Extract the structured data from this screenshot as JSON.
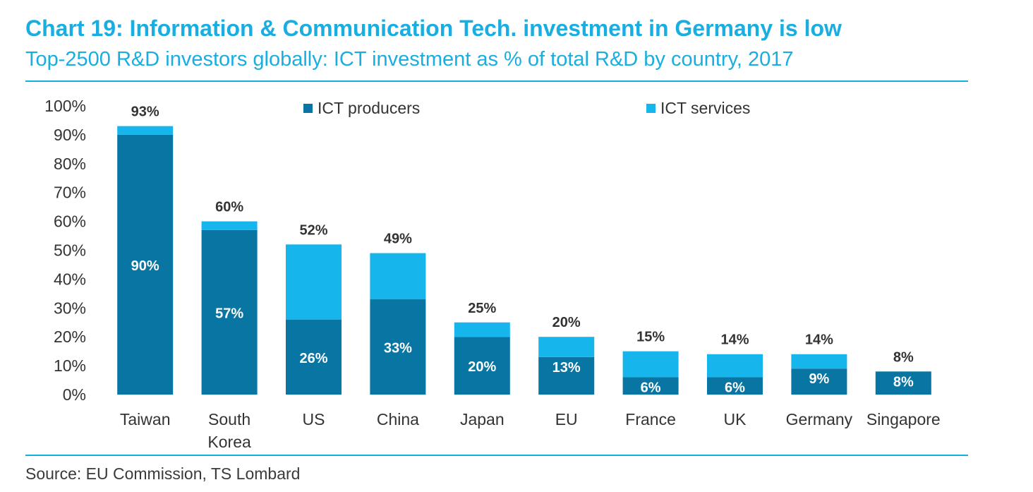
{
  "title": "Chart 19: Information & Communication Tech. investment in Germany is low",
  "subtitle": "Top-2500 R&D investors globally: ICT investment as % of total R&D by country, 2017",
  "source": "Source: EU Commission, TS Lombard",
  "colors": {
    "accent": "#1aaee0",
    "producers": "#0875a3",
    "services": "#16b5ec"
  },
  "legend": {
    "producers": "ICT producers",
    "services": "ICT services"
  },
  "chart_data": {
    "type": "bar",
    "stacked": true,
    "categories": [
      "Taiwan",
      "South Korea",
      "US",
      "China",
      "Japan",
      "EU",
      "France",
      "UK",
      "Germany",
      "Singapore"
    ],
    "category_lines": [
      [
        "Taiwan"
      ],
      [
        "South",
        "Korea"
      ],
      [
        "US"
      ],
      [
        "China"
      ],
      [
        "Japan"
      ],
      [
        "EU"
      ],
      [
        "France"
      ],
      [
        "UK"
      ],
      [
        "Germany"
      ],
      [
        "Singapore"
      ]
    ],
    "series": [
      {
        "name": "ICT producers",
        "values": [
          90,
          57,
          26,
          33,
          20,
          13,
          6,
          6,
          9,
          8
        ],
        "labels": [
          "90%",
          "57%",
          "26%",
          "33%",
          "20%",
          "13%",
          "6%",
          "6%",
          "9%",
          "8%"
        ]
      },
      {
        "name": "ICT services",
        "values": [
          3,
          3,
          26,
          16,
          5,
          7,
          9,
          8,
          5,
          0
        ]
      }
    ],
    "totals": [
      93,
      60,
      52,
      49,
      25,
      20,
      15,
      14,
      14,
      8
    ],
    "total_labels": [
      "93%",
      "60%",
      "52%",
      "49%",
      "25%",
      "20%",
      "15%",
      "14%",
      "14%",
      "8%"
    ],
    "ylim": [
      0,
      100
    ],
    "yticks": [
      0,
      10,
      20,
      30,
      40,
      50,
      60,
      70,
      80,
      90,
      100
    ],
    "ytick_labels": [
      "0%",
      "10%",
      "20%",
      "30%",
      "40%",
      "50%",
      "60%",
      "70%",
      "80%",
      "90%",
      "100%"
    ],
    "xlabel": "",
    "ylabel": "",
    "grid": false,
    "legend_position": "top"
  }
}
